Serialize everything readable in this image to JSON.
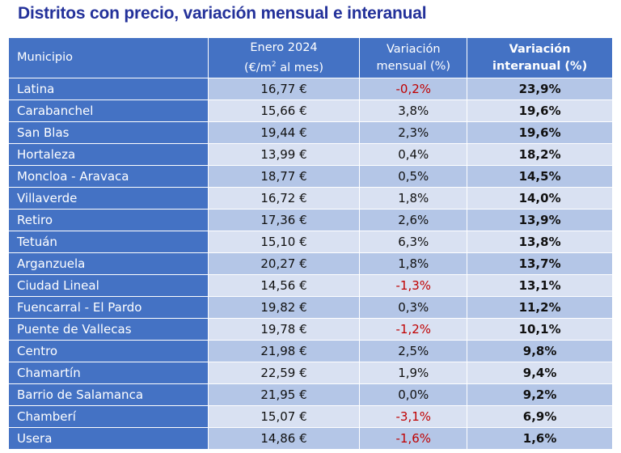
{
  "title": "Distritos con precio, variación mensual e interanual",
  "colors": {
    "header": "#4472C4",
    "row_dark": "#B4C6E7",
    "row_light": "#D9E1F2",
    "negative": "#C00000",
    "title": "#23319A"
  },
  "headers": {
    "municipio": "Municipio",
    "price_line1": "Enero 2024",
    "price_line2_pre": "(€/m",
    "price_line2_sup": "2",
    "price_line2_post": " al mes)",
    "monthly_line1": "Variación",
    "monthly_line2": "mensual (%)",
    "annual_line1": "Variación",
    "annual_line2": "interanual (%)"
  },
  "rows": [
    {
      "name": "Latina",
      "price": "16,77 €",
      "monthly": "-0,2%",
      "annual": "23,9%"
    },
    {
      "name": "Carabanchel",
      "price": "15,66 €",
      "monthly": "3,8%",
      "annual": "19,6%"
    },
    {
      "name": "San Blas",
      "price": "19,44 €",
      "monthly": "2,3%",
      "annual": "19,6%"
    },
    {
      "name": "Hortaleza",
      "price": "13,99 €",
      "monthly": "0,4%",
      "annual": "18,2%"
    },
    {
      "name": "Moncloa - Aravaca",
      "price": "18,77 €",
      "monthly": "0,5%",
      "annual": "14,5%"
    },
    {
      "name": "Villaverde",
      "price": "16,72 €",
      "monthly": "1,8%",
      "annual": "14,0%"
    },
    {
      "name": "Retiro",
      "price": "17,36 €",
      "monthly": "2,6%",
      "annual": "13,9%"
    },
    {
      "name": "Tetuán",
      "price": "15,10 €",
      "monthly": "6,3%",
      "annual": "13,8%"
    },
    {
      "name": "Arganzuela",
      "price": "20,27 €",
      "monthly": "1,8%",
      "annual": "13,7%"
    },
    {
      "name": "Ciudad Lineal",
      "price": "14,56 €",
      "monthly": "-1,3%",
      "annual": "13,1%"
    },
    {
      "name": "Fuencarral - El Pardo",
      "price": "19,82 €",
      "monthly": "0,3%",
      "annual": "11,2%"
    },
    {
      "name": "Puente de Vallecas",
      "price": "19,78 €",
      "monthly": "-1,2%",
      "annual": "10,1%"
    },
    {
      "name": "Centro",
      "price": "21,98 €",
      "monthly": "2,5%",
      "annual": "9,8%"
    },
    {
      "name": "Chamartín",
      "price": "22,59 €",
      "monthly": "1,9%",
      "annual": "9,4%"
    },
    {
      "name": "Barrio de Salamanca",
      "price": "21,95 €",
      "monthly": "0,0%",
      "annual": "9,2%"
    },
    {
      "name": "Chamberí",
      "price": "15,07 €",
      "monthly": "-3,1%",
      "annual": "6,9%"
    },
    {
      "name": "Usera",
      "price": "14,86 €",
      "monthly": "-1,6%",
      "annual": "1,6%"
    }
  ]
}
